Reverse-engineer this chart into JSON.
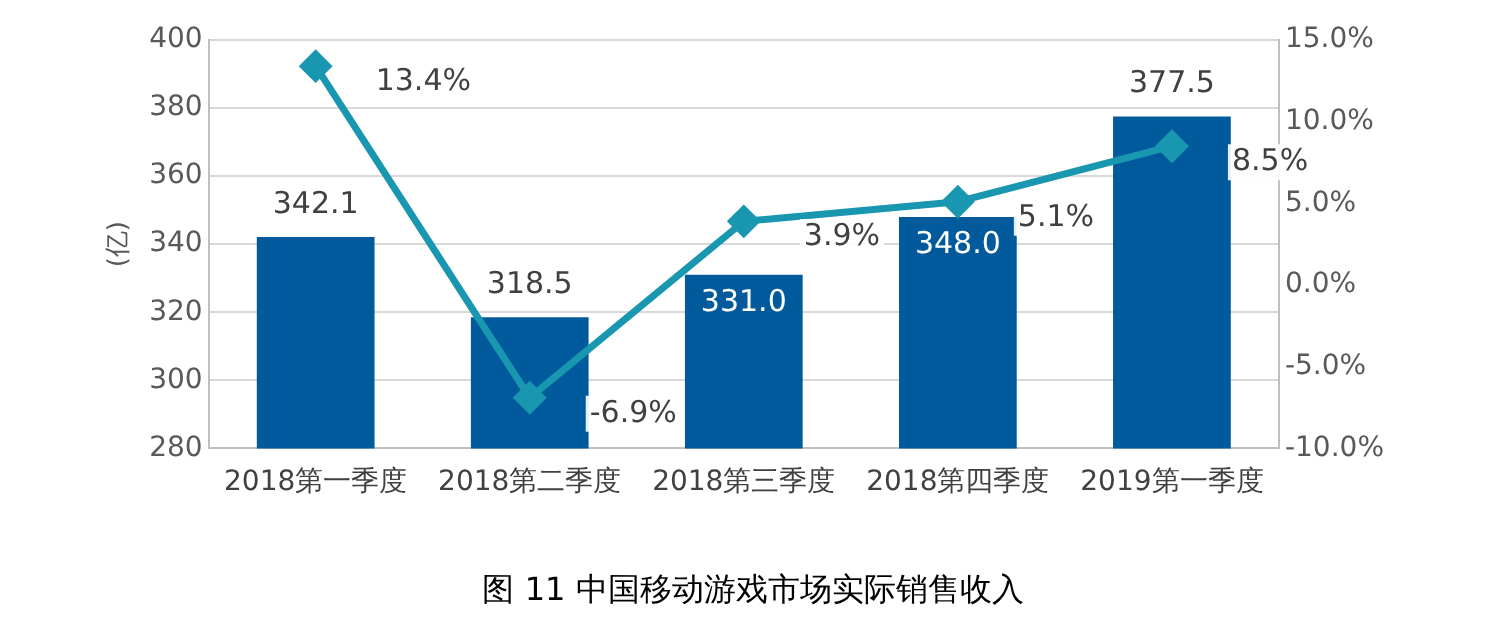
{
  "chart_data": {
    "type": "bar",
    "title": "图 11  中国移动游戏市场实际销售收入",
    "ylabel": "(亿)",
    "categories": [
      "2018第一季度",
      "2018第二季度",
      "2018第三季度",
      "2018第四季度",
      "2019第一季度"
    ],
    "series": [
      {
        "color": "#005a9c",
        "values": [
          342.1,
          318.5,
          331.0,
          348.0,
          377.5
        ],
        "value_labels": [
          "342.1",
          "318.5",
          "331.0",
          "348.0",
          "377.5"
        ]
      },
      {
        "type": "line",
        "axis": "y2",
        "color": "#1a97b0",
        "marker": "diamond",
        "values": [
          13.4,
          -6.9,
          3.9,
          5.1,
          8.5
        ],
        "value_labels": [
          "13.4%",
          "-6.9%",
          "3.9%",
          "5.1%",
          "8.5%"
        ]
      }
    ],
    "ylim": [
      280,
      400
    ],
    "yticks": [
      280,
      300,
      320,
      340,
      360,
      380,
      400
    ],
    "y2lim": [
      -10,
      15
    ],
    "y2ticks": [
      {
        "value": -10,
        "label": "-10.0%"
      },
      {
        "value": -5,
        "label": "-5.0%"
      },
      {
        "value": 0,
        "label": "0.0%"
      },
      {
        "value": 5,
        "label": "5.0%"
      },
      {
        "value": 10,
        "label": "10.0%"
      },
      {
        "value": 15,
        "label": "15.0%"
      }
    ],
    "grid": "y",
    "legend": false
  }
}
